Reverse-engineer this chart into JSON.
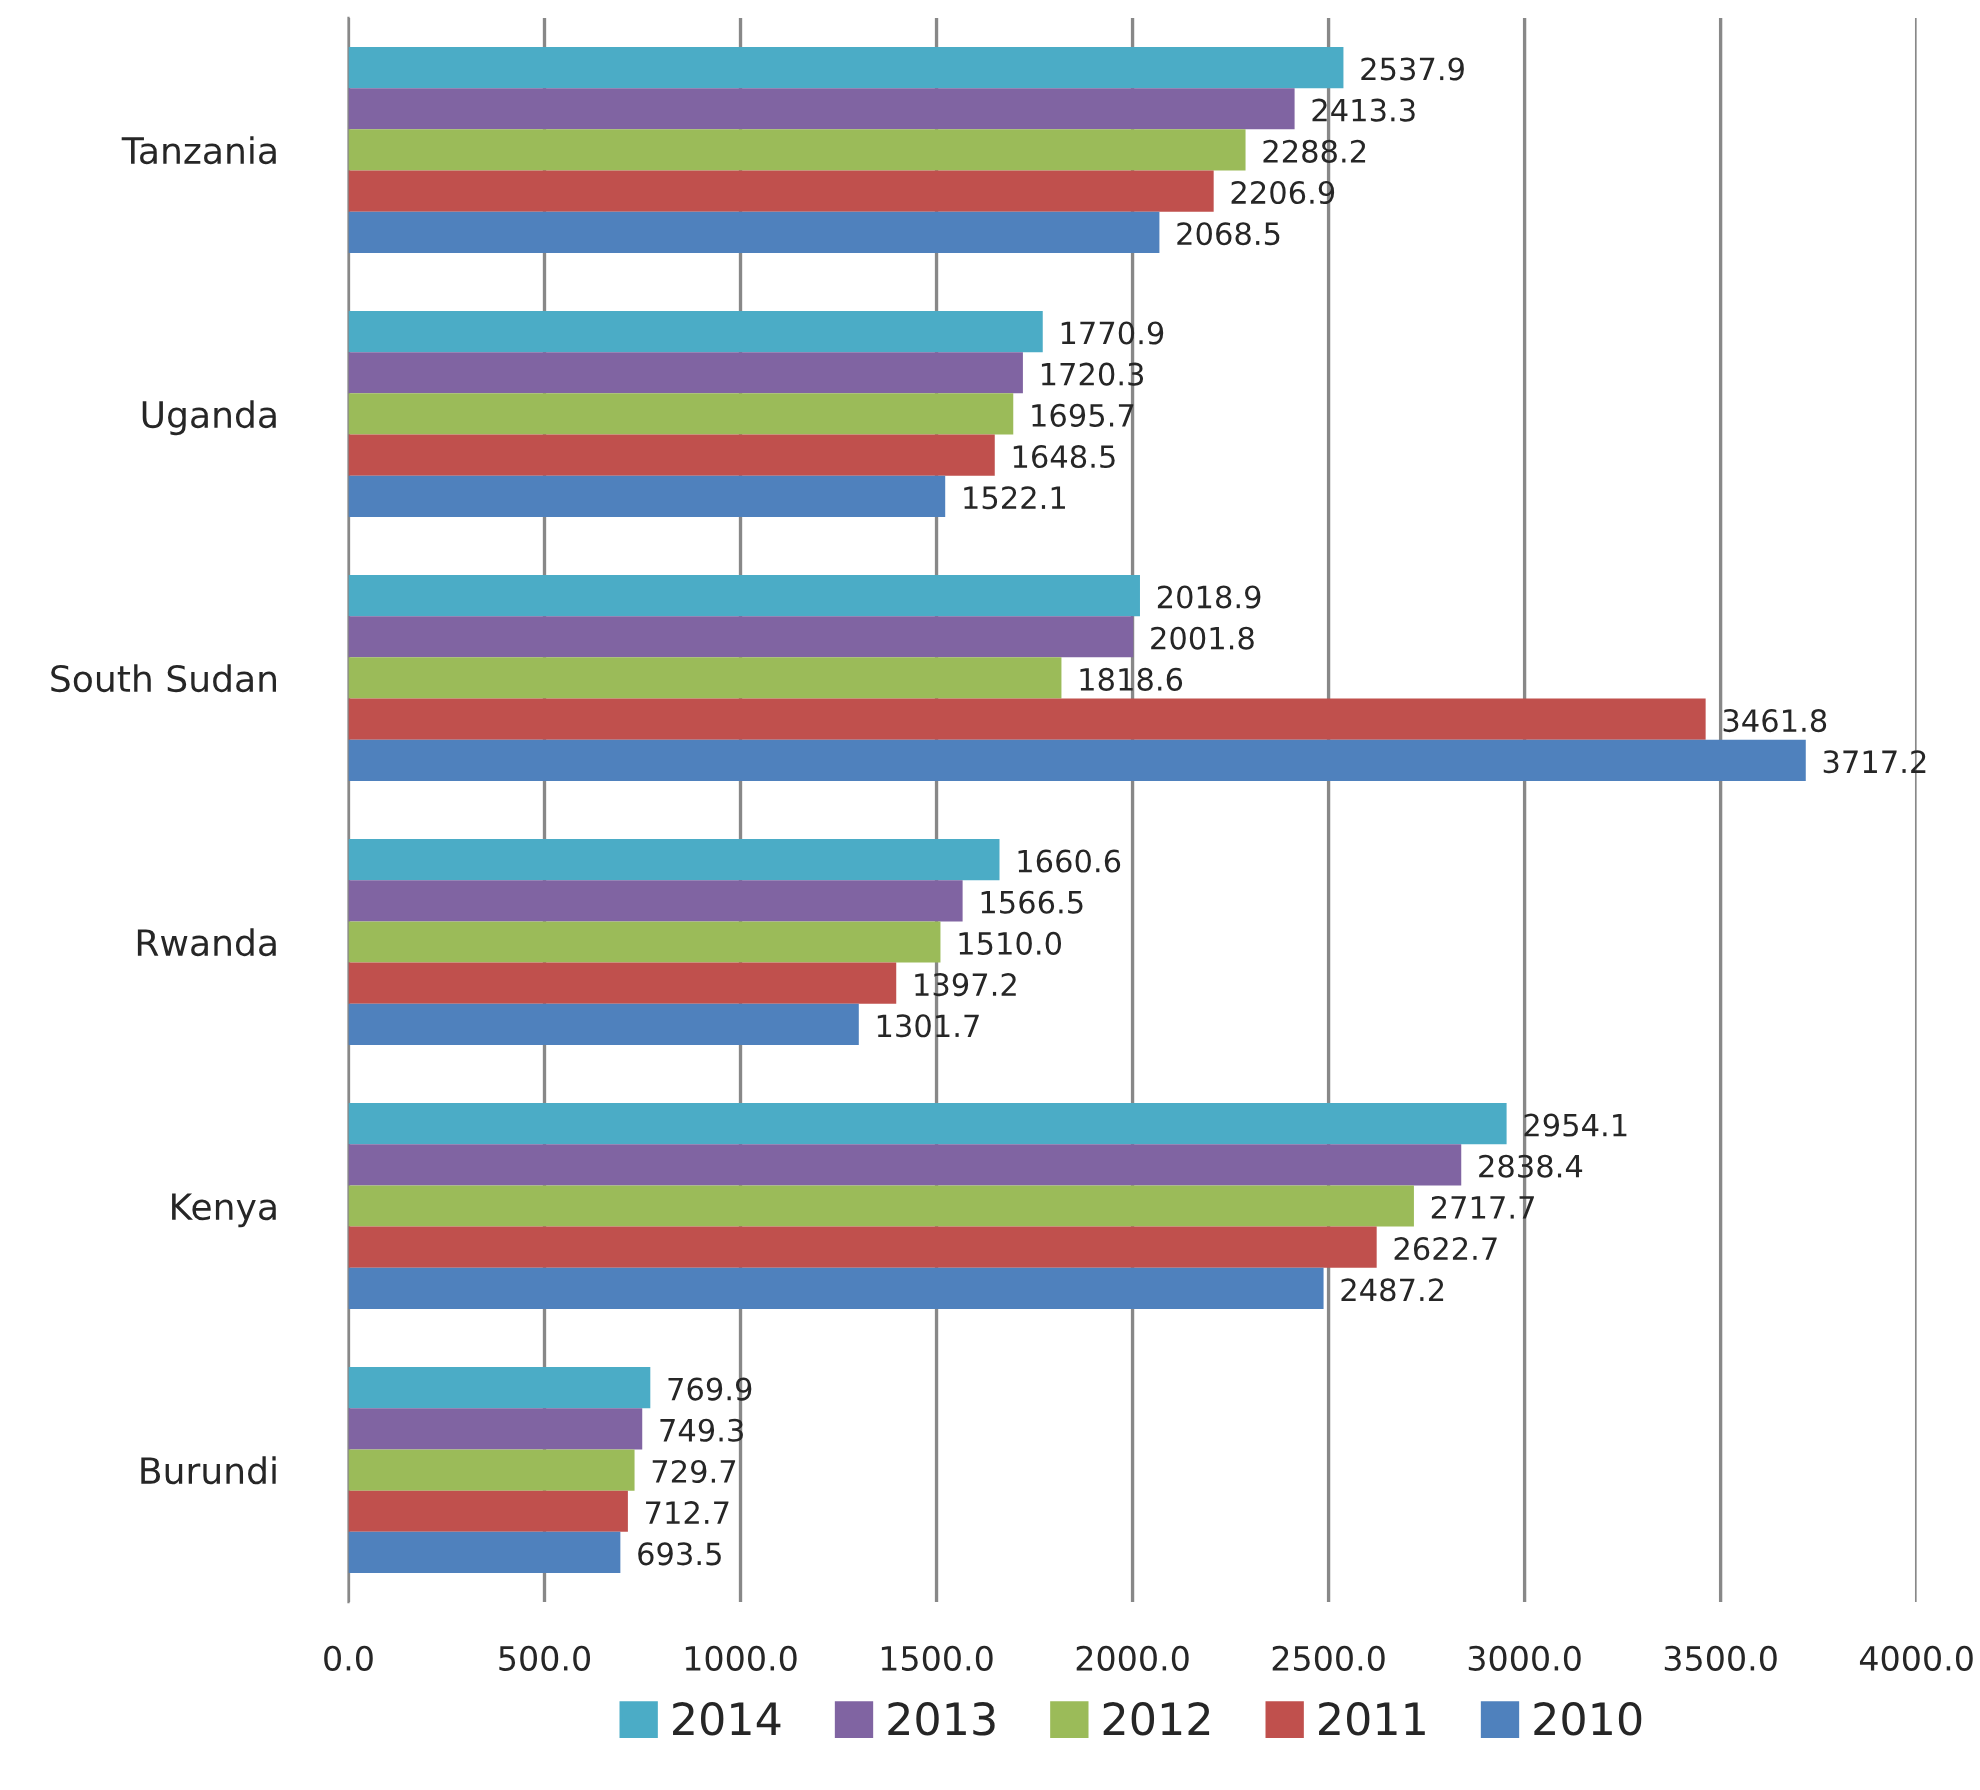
{
  "chart_data": {
    "type": "bar",
    "orientation": "horizontal",
    "categories": [
      "Tanzania",
      "Uganda",
      "South Sudan",
      "Rwanda",
      "Kenya",
      "Burundi"
    ],
    "series": [
      {
        "name": "2014",
        "color": "#4bacc6",
        "values": [
          2537.9,
          1770.9,
          2018.9,
          1660.6,
          2954.1,
          769.9
        ],
        "value_labels": [
          "2537.9",
          "1770.9",
          "2018.9",
          "1660.6",
          "2954.1",
          "769.9"
        ]
      },
      {
        "name": "2013",
        "color": "#8064a2",
        "values": [
          2413.3,
          1720.3,
          2001.8,
          1566.5,
          2838.4,
          749.3
        ],
        "value_labels": [
          "2413.3",
          "1720.3",
          "2001.8",
          "1566.5",
          "2838.4",
          "749.3"
        ]
      },
      {
        "name": "2012",
        "color": "#9bbb59",
        "values": [
          2288.2,
          1695.7,
          1818.6,
          1510.0,
          2717.7,
          729.7
        ],
        "value_labels": [
          "2288.2",
          "1695.7",
          "1818.6",
          "1510.0",
          "2717.7",
          "729.7"
        ]
      },
      {
        "name": "2011",
        "color": "#c0504d",
        "values": [
          2206.9,
          1648.5,
          3461.8,
          1397.2,
          2622.7,
          712.7
        ],
        "value_labels": [
          "2206.9",
          "1648.5",
          "3461.8",
          "1397.2",
          "2622.7",
          "712.7"
        ]
      },
      {
        "name": "2010",
        "color": "#4f81bd",
        "values": [
          2068.5,
          1522.1,
          3717.2,
          1301.7,
          2487.2,
          693.5
        ],
        "value_labels": [
          "2068.5",
          "1522.1",
          "3717.2",
          "1301.7",
          "2487.2",
          "693.5"
        ]
      }
    ],
    "xlim": [
      0,
      4000
    ],
    "xticks": [
      {
        "value": 0,
        "label": "0.0"
      },
      {
        "value": 500,
        "label": "500.0"
      },
      {
        "value": 1000,
        "label": "1000.0"
      },
      {
        "value": 1500,
        "label": "1500.0"
      },
      {
        "value": 2000,
        "label": "2000.0"
      },
      {
        "value": 2500,
        "label": "2500.0"
      },
      {
        "value": 3000,
        "label": "3000.0"
      },
      {
        "value": 3500,
        "label": "3500.0"
      },
      {
        "value": 4000,
        "label": "4000.0"
      }
    ],
    "grid": "x",
    "legend": "bottom"
  }
}
